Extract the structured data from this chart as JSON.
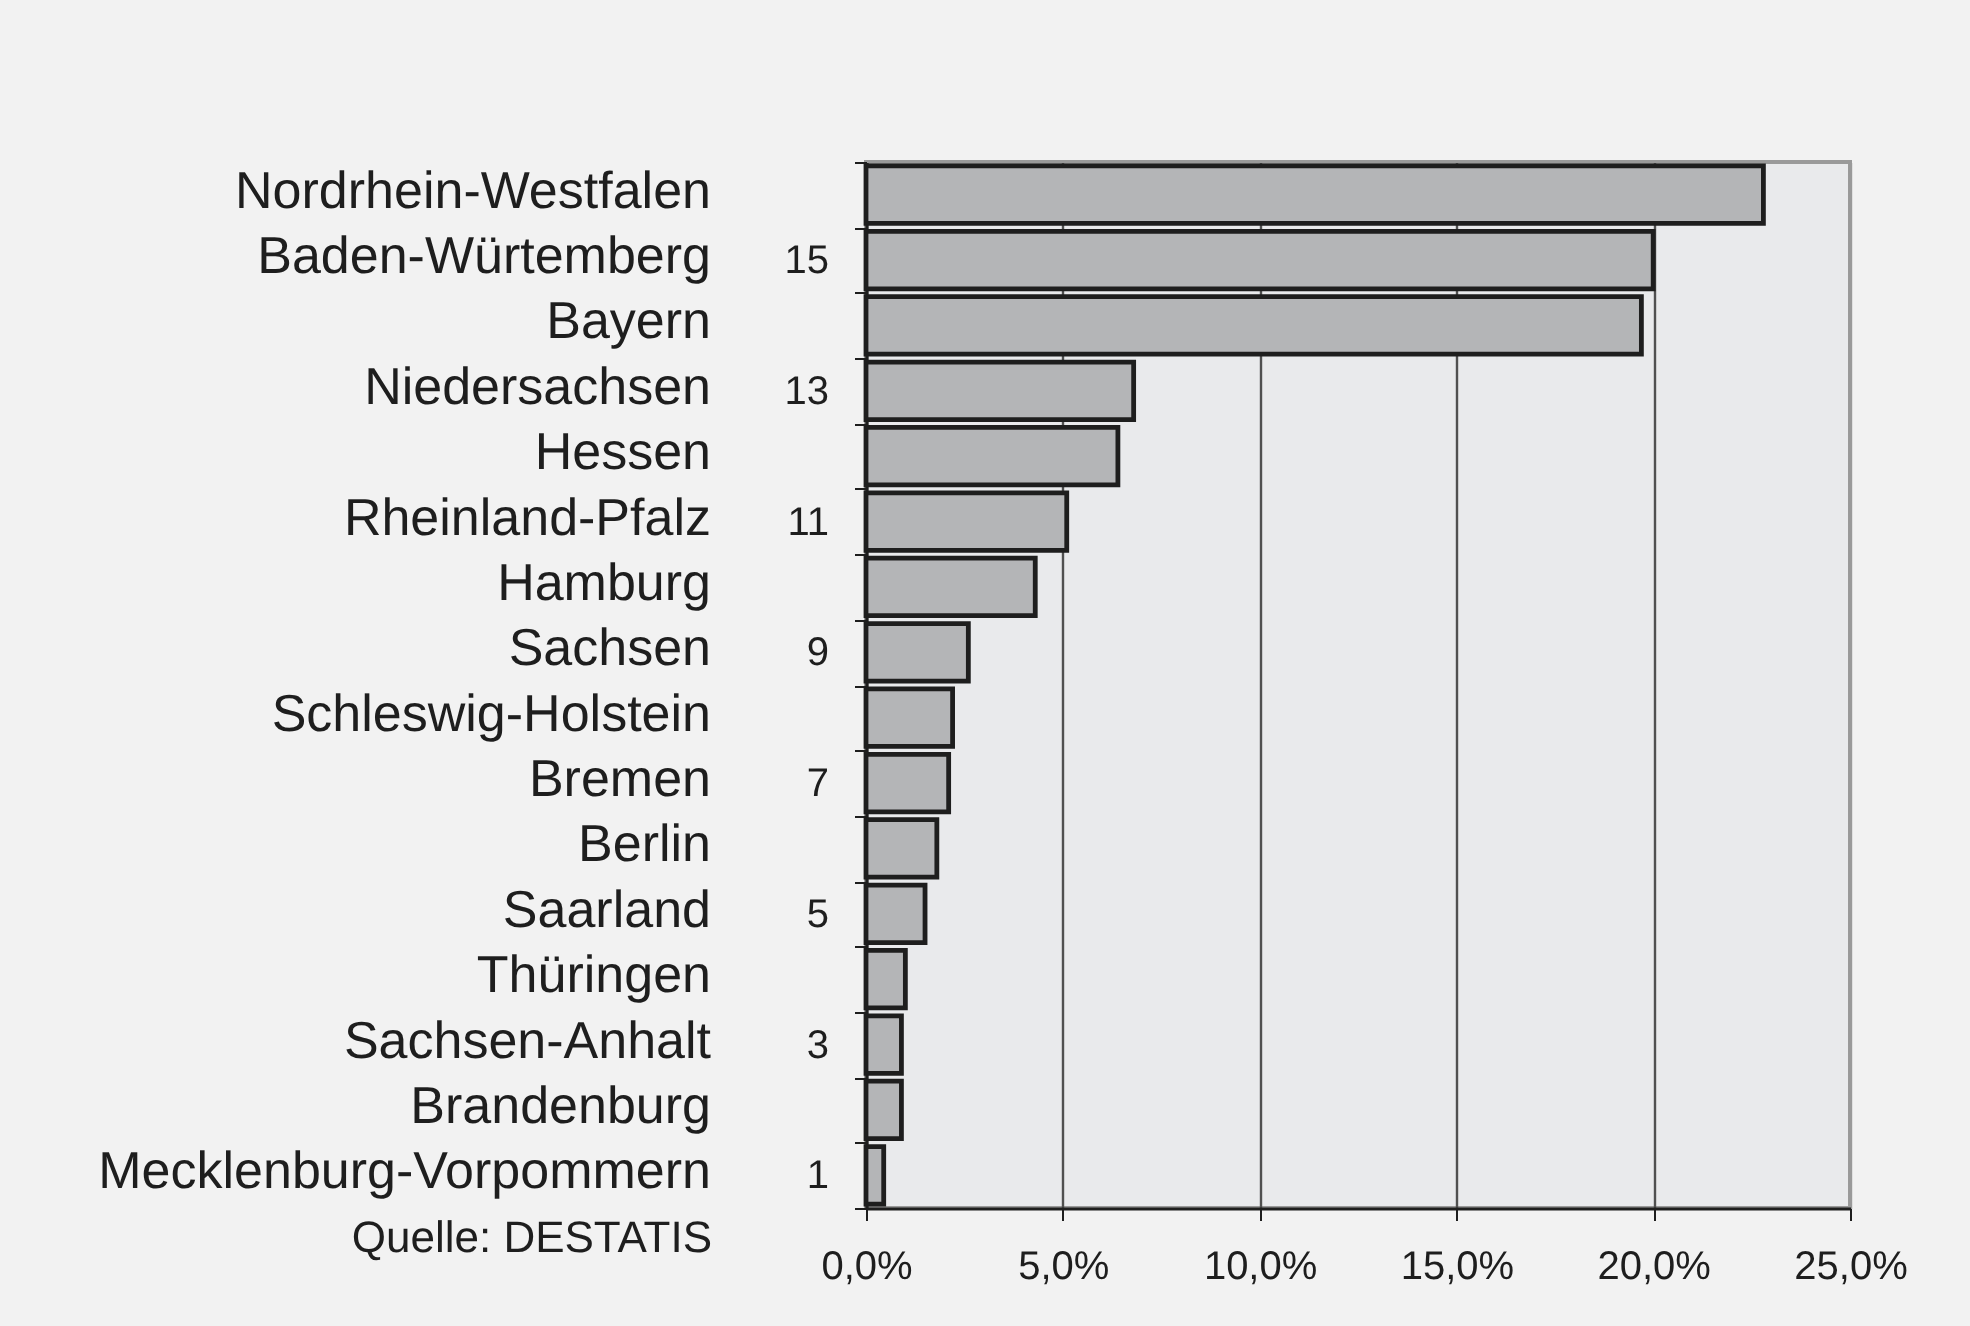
{
  "chart_data": {
    "type": "bar",
    "orientation": "horizontal",
    "categories": [
      "Nordrhein-Westfalen",
      "Baden-Würtemberg",
      "Bayern",
      "Niedersachsen",
      "Hessen",
      "Rheinland-Pfalz",
      "Hamburg",
      "Sachsen",
      "Schleswig-Holstein",
      "Bremen",
      "Berlin",
      "Saarland",
      "Thüringen",
      "Sachsen-Anhalt",
      "Brandenburg",
      "Mecklenburg-Vorpommern"
    ],
    "values": [
      22.8,
      20.0,
      19.7,
      6.8,
      6.4,
      5.1,
      4.3,
      2.6,
      2.2,
      2.1,
      1.8,
      1.5,
      1.0,
      0.9,
      0.9,
      0.45
    ],
    "color": "#b4b5b7",
    "xlim": [
      0,
      25
    ],
    "xticks": [
      {
        "value": 0,
        "label": "0,0%"
      },
      {
        "value": 5,
        "label": "5,0%"
      },
      {
        "value": 10,
        "label": "10,0%"
      },
      {
        "value": 15,
        "label": "15,0%"
      },
      {
        "value": 20,
        "label": "20,0%"
      },
      {
        "value": 25,
        "label": "25,0%"
      }
    ],
    "y2lim": [
      0.5,
      16.5
    ],
    "y2ticks": [
      1,
      3,
      5,
      7,
      9,
      11,
      13,
      15
    ],
    "grid": "x",
    "annotations": [
      "Quelle: DESTATIS"
    ]
  }
}
